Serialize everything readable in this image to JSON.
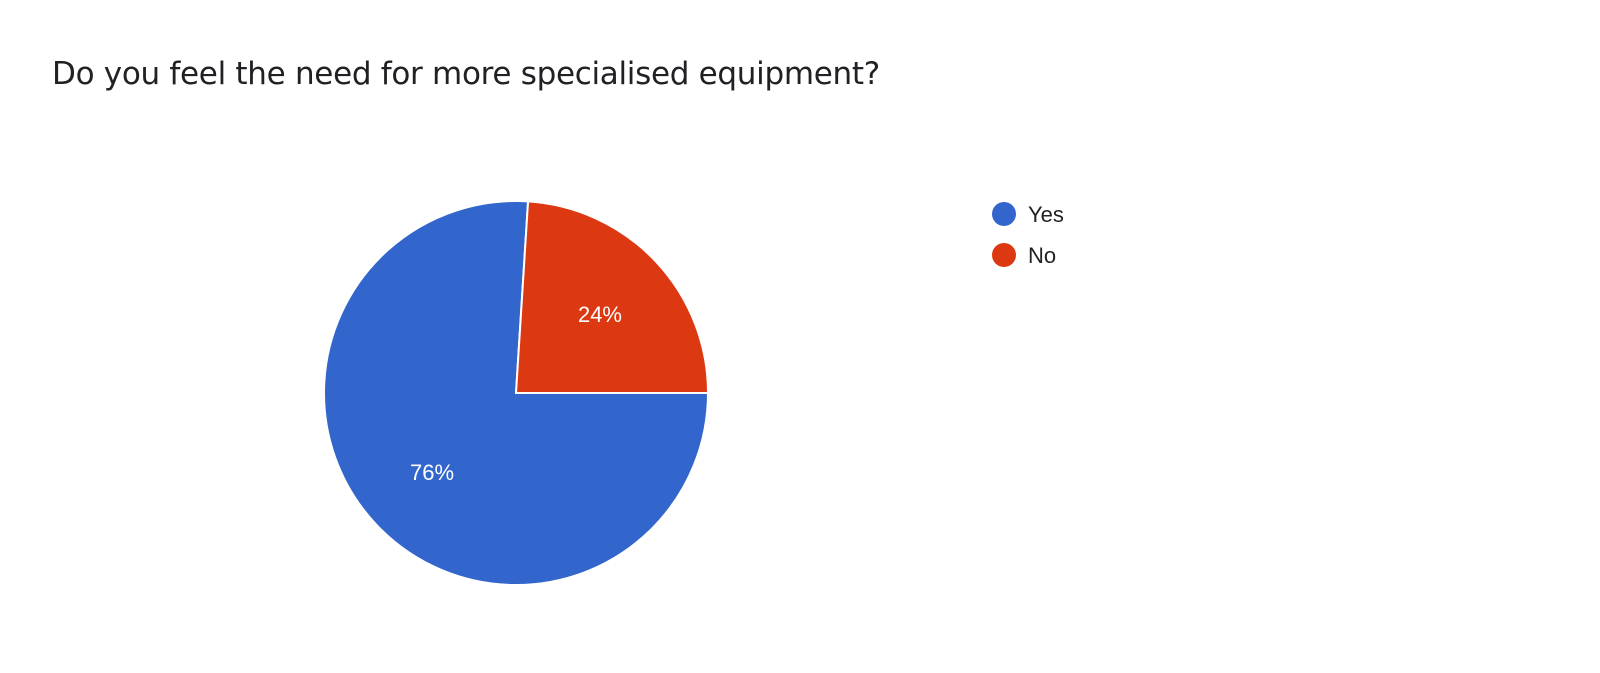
{
  "chart_data": {
    "type": "pie",
    "title": "Do you feel the need for more specialised equipment?",
    "categories": [
      "Yes",
      "No"
    ],
    "values": [
      76,
      24
    ],
    "labels": [
      "76%",
      "24%"
    ],
    "colors": [
      "#3366cc",
      "#dc3912"
    ],
    "legend_position": "right"
  }
}
